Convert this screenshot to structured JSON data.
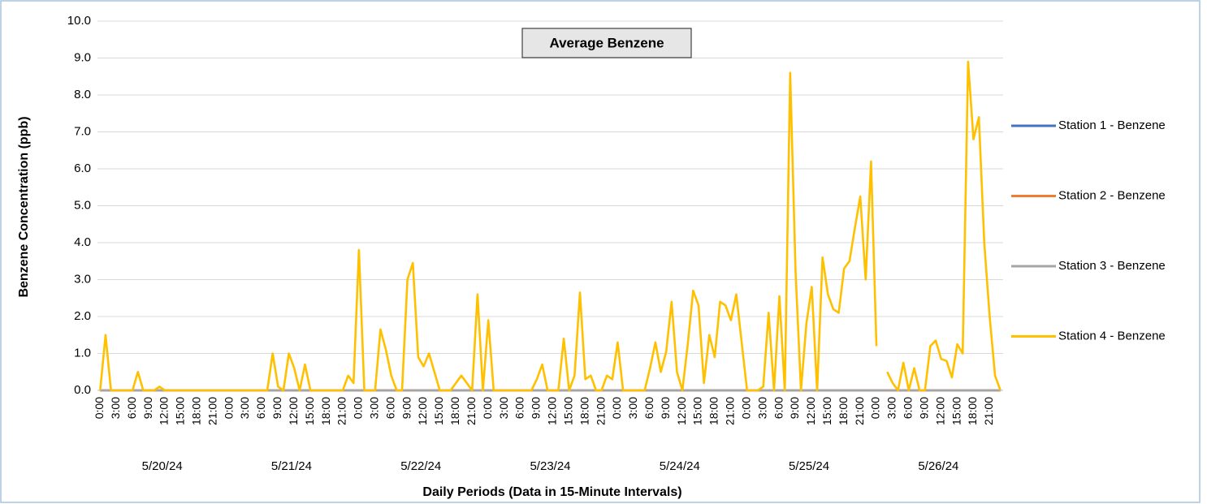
{
  "chart_data": {
    "type": "line",
    "title": "Average Benzene",
    "ylabel": "Benzene Concentration (ppb)",
    "xlabel": "Daily Periods (Data in 15-Minute Intervals)",
    "categories": [
      "0:00",
      null,
      null,
      "3:00",
      null,
      null,
      "6:00",
      null,
      null,
      "9:00",
      null,
      null,
      "12:00",
      null,
      null,
      "15:00",
      null,
      null,
      "18:00",
      null,
      null,
      "21:00",
      null,
      null,
      "0:00",
      null,
      null,
      "3:00",
      null,
      null,
      "6:00",
      null,
      null,
      "9:00",
      null,
      null,
      "12:00",
      null,
      null,
      "15:00",
      null,
      null,
      "18:00",
      null,
      null,
      "21:00",
      null,
      null,
      "0:00",
      null,
      null,
      "3:00",
      null,
      null,
      "6:00",
      null,
      null,
      "9:00",
      null,
      null,
      "12:00",
      null,
      null,
      "15:00",
      null,
      null,
      "18:00",
      null,
      null,
      "21:00",
      null,
      null,
      "0:00",
      null,
      null,
      "3:00",
      null,
      null,
      "6:00",
      null,
      null,
      "9:00",
      null,
      null,
      "12:00",
      null,
      null,
      "15:00",
      null,
      null,
      "18:00",
      null,
      null,
      "21:00",
      null,
      null,
      "0:00",
      null,
      null,
      "3:00",
      null,
      null,
      "6:00",
      null,
      null,
      "9:00",
      null,
      null,
      "12:00",
      null,
      null,
      "15:00",
      null,
      null,
      "18:00",
      null,
      null,
      "21:00",
      null,
      null,
      "0:00",
      null,
      null,
      "3:00",
      null,
      null,
      "6:00",
      null,
      null,
      "9:00",
      null,
      null,
      "12:00",
      null,
      null,
      "15:00",
      null,
      null,
      "18:00",
      null,
      null,
      "21:00",
      null,
      null,
      "0:00",
      null,
      null,
      "3:00",
      null,
      null,
      "6:00",
      null,
      null,
      "9:00",
      null,
      null,
      "12:00",
      null,
      null,
      "15:00",
      null,
      null,
      "18:00",
      null,
      null,
      "21:00",
      null,
      null
    ],
    "x_groups": [
      "5/20/24",
      "5/21/24",
      "5/22/24",
      "5/23/24",
      "5/24/24",
      "5/25/24",
      "5/26/24"
    ],
    "ylim": [
      0,
      10
    ],
    "yticks": [
      {
        "value": 0,
        "label": "0.0"
      },
      {
        "value": 1,
        "label": "1.0"
      },
      {
        "value": 2,
        "label": "2.0"
      },
      {
        "value": 3,
        "label": "3.0"
      },
      {
        "value": 4,
        "label": "4.0"
      },
      {
        "value": 5,
        "label": "5.0"
      },
      {
        "value": 6,
        "label": "6.0"
      },
      {
        "value": 7,
        "label": "7.0"
      },
      {
        "value": 8,
        "label": "8.0"
      },
      {
        "value": 9,
        "label": "9.0"
      },
      {
        "value": 10,
        "label": "10.0"
      }
    ],
    "grid": true,
    "legend": "right",
    "series": [
      {
        "name": "Station 1 - Benzene",
        "color": "#4472c4",
        "values": [
          0,
          0,
          0,
          0,
          0,
          0,
          0,
          0,
          0,
          0,
          0,
          0,
          0,
          0,
          0,
          0,
          0,
          0,
          0,
          0,
          0,
          0,
          0,
          0,
          0,
          0,
          0,
          0,
          0,
          0,
          0,
          0,
          0,
          0,
          0,
          0,
          0,
          0,
          0,
          0,
          0,
          0,
          0,
          0,
          0,
          0,
          0,
          0,
          0,
          0,
          0,
          0,
          0,
          0,
          0,
          0,
          0,
          0,
          0,
          0,
          0,
          0,
          0,
          0,
          0,
          0,
          0,
          0,
          0,
          0,
          0,
          0,
          0,
          0,
          0,
          0,
          0,
          0,
          0,
          0,
          0,
          0,
          0,
          0,
          0,
          0,
          0,
          0,
          0,
          0,
          0,
          0,
          0,
          0,
          0,
          0,
          0,
          0,
          0,
          0,
          0,
          0,
          0,
          0,
          0,
          0,
          0,
          0,
          0,
          0,
          0,
          0,
          0,
          0,
          0,
          0,
          0,
          0,
          0,
          0,
          0,
          0,
          0,
          0,
          0,
          0,
          0,
          0,
          0,
          0,
          0,
          0,
          0,
          0,
          0,
          0,
          0,
          0,
          0,
          0,
          0,
          0,
          0,
          0,
          0,
          0,
          0,
          0,
          0,
          0,
          0,
          0,
          0,
          0,
          0,
          0,
          0,
          0,
          0,
          0,
          0,
          0,
          0,
          0,
          0,
          0,
          0,
          0
        ]
      },
      {
        "name": "Station 2 - Benzene",
        "color": "#ed7d31",
        "values": [
          0,
          0,
          0,
          0,
          0,
          0,
          0,
          0,
          0,
          0,
          0,
          0,
          0,
          0,
          0,
          0,
          0,
          0,
          0,
          0,
          0,
          0,
          0,
          0,
          0,
          0,
          0,
          0,
          0,
          0,
          0,
          0,
          0,
          0,
          0,
          0,
          0,
          0,
          0,
          0,
          0,
          0,
          0,
          0,
          0,
          0,
          0,
          0,
          0,
          0,
          0,
          0,
          0,
          0,
          0,
          0,
          0,
          0,
          0,
          0,
          0,
          0,
          0,
          0,
          0,
          0,
          0,
          0,
          0,
          0,
          0,
          0,
          0,
          0,
          0,
          0,
          0,
          0,
          0,
          0,
          0,
          0,
          0,
          0,
          0,
          0,
          0,
          0,
          0,
          0,
          0,
          0,
          0,
          0,
          0,
          0,
          0,
          0,
          0,
          0,
          0,
          0,
          0,
          0,
          0,
          0,
          0,
          0,
          0,
          0,
          0,
          0,
          0,
          0,
          0,
          0,
          0,
          0,
          0,
          0,
          0,
          0,
          0,
          0,
          0,
          0,
          0,
          0,
          0,
          0,
          0,
          0,
          0,
          0,
          0,
          0,
          0,
          0,
          0,
          0,
          0,
          0,
          0,
          0,
          0,
          0,
          0,
          0,
          0,
          0,
          0,
          0,
          0,
          0,
          0,
          0,
          0,
          0,
          0,
          0,
          0,
          0,
          0,
          0,
          0,
          0,
          0,
          0
        ]
      },
      {
        "name": "Station 3 - Benzene",
        "color": "#a5a5a5",
        "values": [
          0,
          0,
          0,
          0,
          0,
          0,
          0,
          0,
          0,
          0,
          0,
          0,
          0,
          0,
          0,
          0,
          0,
          0,
          0,
          0,
          0,
          0,
          0,
          0,
          0,
          0,
          0,
          0,
          0,
          0,
          0,
          0,
          0,
          0,
          0,
          0,
          0,
          0,
          0,
          0,
          0,
          0,
          0,
          0,
          0,
          0,
          0,
          0,
          0,
          0,
          0,
          0,
          0,
          0,
          0,
          0,
          0,
          0,
          0,
          0,
          0,
          0,
          0,
          0,
          0,
          0,
          0,
          0,
          0,
          0,
          0,
          0,
          0,
          0,
          0,
          0,
          0,
          0,
          0,
          0,
          0,
          0,
          0,
          0,
          0,
          0,
          0,
          0,
          0,
          0,
          0,
          0,
          0,
          0,
          0,
          0,
          0,
          0,
          0,
          0,
          0,
          0,
          0,
          0,
          0,
          0,
          0,
          0,
          0,
          0,
          0,
          0,
          0,
          0,
          0,
          0,
          0,
          0,
          0,
          0,
          0,
          0,
          0,
          0,
          0,
          0,
          0,
          0,
          0,
          0,
          0,
          0,
          0,
          0,
          0,
          0,
          0,
          0,
          0,
          0,
          0,
          0,
          0,
          0,
          0,
          0,
          0,
          0,
          0,
          0,
          0,
          0,
          0,
          0,
          0,
          0,
          0,
          0,
          0,
          0,
          0,
          0,
          0,
          0,
          0,
          0,
          0,
          0
        ]
      },
      {
        "name": "Station 4 - Benzene",
        "color": "#ffc000",
        "values": [
          0,
          1.5,
          0,
          0,
          0,
          0,
          0,
          0.5,
          0,
          0,
          0,
          0.1,
          0,
          0,
          0,
          0,
          0,
          0,
          0,
          0,
          0,
          0,
          0,
          0,
          0,
          0,
          0,
          0,
          0,
          0,
          0,
          0,
          1.0,
          0.1,
          0,
          1.0,
          0.6,
          0,
          0.7,
          0,
          0,
          0,
          0,
          0,
          0,
          0,
          0.4,
          0.2,
          3.8,
          0,
          0,
          0,
          1.65,
          1.1,
          0.4,
          0,
          0,
          3.0,
          3.45,
          0.9,
          0.65,
          1.0,
          0.5,
          0,
          0,
          0,
          0.2,
          0.4,
          0.2,
          0,
          2.6,
          0,
          1.9,
          0,
          0,
          0,
          0,
          0,
          0,
          0,
          0,
          0.3,
          0.7,
          0,
          0,
          0,
          1.4,
          0,
          0.4,
          2.65,
          0.3,
          0.4,
          0,
          0,
          0.4,
          0.3,
          1.3,
          0,
          0,
          0,
          0,
          0,
          0.6,
          1.3,
          0.5,
          1.05,
          2.4,
          0.5,
          0,
          1.25,
          2.7,
          2.3,
          0.2,
          1.5,
          0.9,
          2.4,
          2.3,
          1.9,
          2.6,
          1.3,
          0,
          0,
          0,
          0.1,
          2.1,
          0,
          2.55,
          0,
          8.6,
          3.2,
          0,
          1.8,
          2.8,
          0,
          3.6,
          2.6,
          2.2,
          2.1,
          3.3,
          3.5,
          4.4,
          5.25,
          3.0,
          6.2,
          1.2,
          null,
          0.5,
          0.2,
          0,
          0.75,
          0,
          0.6,
          0,
          0,
          1.2,
          1.35,
          0.85,
          0.8,
          0.35,
          1.25,
          1.0,
          8.9,
          6.8,
          7.4,
          4.0,
          2.0,
          0.4,
          0
        ]
      }
    ]
  }
}
